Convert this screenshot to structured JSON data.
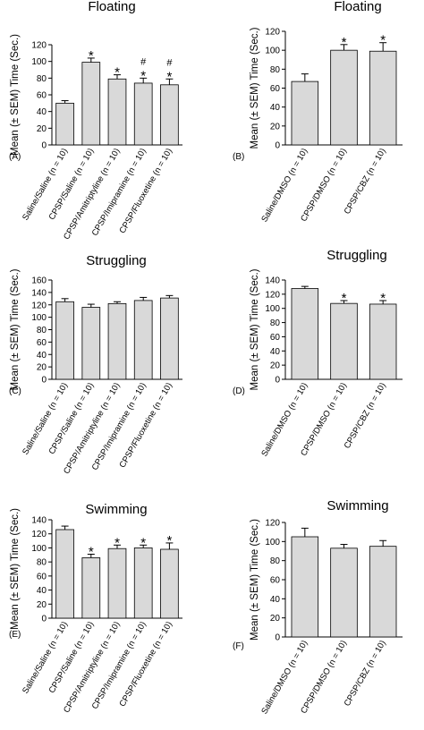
{
  "colors": {
    "bar": "#d9d9d9",
    "stroke": "#000000"
  },
  "chart_data": [
    {
      "type": "bar",
      "panel_label": "(A)",
      "title": "Floating",
      "ylabel": "Mean (± SEM) Time (Sec.)",
      "ylim": [
        0,
        120
      ],
      "yticks": [
        0,
        20,
        40,
        60,
        80,
        100,
        120
      ],
      "categories": [
        "Saline/Saline (n = 10)",
        "CPSP/Saline (n = 10)",
        "CPSP/Amitriptyline (n = 10)",
        "CPSP/Imipramine (n = 10)",
        "CPSP/Fluoxetine (n = 10)"
      ],
      "values": [
        50,
        99,
        79,
        74,
        72
      ],
      "errors": [
        3,
        5,
        5,
        6,
        7
      ],
      "annotations": [
        [],
        [
          "*"
        ],
        [
          "*"
        ],
        [
          "#",
          "*"
        ],
        [
          "#",
          "*"
        ]
      ]
    },
    {
      "type": "bar",
      "panel_label": "(B)",
      "title": "Floating",
      "ylabel": "Mean (± SEM) Time (Sec.)",
      "ylim": [
        0,
        120
      ],
      "yticks": [
        0,
        20,
        40,
        60,
        80,
        100,
        120
      ],
      "categories": [
        "Saline/DMSO (n = 10)",
        "CPSP/DMSO (n = 10)",
        "CPSP/CBZ (n = 10)"
      ],
      "values": [
        67,
        100,
        99
      ],
      "errors": [
        8,
        6,
        9
      ],
      "annotations": [
        [],
        [
          "*"
        ],
        [
          "*"
        ]
      ]
    },
    {
      "type": "bar",
      "panel_label": "(C)",
      "title": "Struggling",
      "ylabel": "Mean (± SEM) Time (Sec.)",
      "ylim": [
        0,
        160
      ],
      "yticks": [
        0,
        20,
        40,
        60,
        80,
        100,
        120,
        140,
        160
      ],
      "categories": [
        "Saline/Saline (n = 10)",
        "CPSP/Saline (n = 10)",
        "CPSP/Amitriptyline (n = 10)",
        "CPSP/Imipramine (n = 10)",
        "CPSP/Fluoxetine (n = 10)"
      ],
      "values": [
        125,
        116,
        122,
        127,
        131
      ],
      "errors": [
        5,
        5,
        3,
        5,
        4
      ],
      "annotations": [
        [],
        [],
        [],
        [],
        []
      ]
    },
    {
      "type": "bar",
      "panel_label": "(D)",
      "title": "Struggling",
      "ylabel": "Mean (± SEM) Time (Sec.)",
      "ylim": [
        0,
        140
      ],
      "yticks": [
        0,
        20,
        40,
        60,
        80,
        100,
        120,
        140
      ],
      "categories": [
        "Saline/DMSO (n = 10)",
        "CPSP/DMSO (n = 10)",
        "CPSP/CBZ (n = 10)"
      ],
      "values": [
        128,
        107,
        106
      ],
      "errors": [
        3,
        4,
        5
      ],
      "annotations": [
        [],
        [
          "*"
        ],
        [
          "*"
        ]
      ]
    },
    {
      "type": "bar",
      "panel_label": "(E)",
      "title": "Swimming",
      "ylabel": "Mean (± SEM) Time (Sec.)",
      "ylim": [
        0,
        140
      ],
      "yticks": [
        0,
        20,
        40,
        60,
        80,
        100,
        120,
        140
      ],
      "categories": [
        "Saline/Saline (n = 10)",
        "CPSP/Saline (n = 10)",
        "CPSP/Amitriptyline (n = 10)",
        "CPSP/Imipramine (n = 10)",
        "CPSP/Fluoxetine (n = 10)"
      ],
      "values": [
        126,
        86,
        99,
        100,
        98
      ],
      "errors": [
        5,
        5,
        5,
        4,
        9
      ],
      "annotations": [
        [],
        [
          "*"
        ],
        [
          "*"
        ],
        [
          "*"
        ],
        [
          "*"
        ]
      ]
    },
    {
      "type": "bar",
      "panel_label": "(F)",
      "title": "Swimming",
      "ylabel": "Mean (± SEM) Time (Sec.)",
      "ylim": [
        0,
        120
      ],
      "yticks": [
        0,
        20,
        40,
        60,
        80,
        100,
        120
      ],
      "categories": [
        "Saline/DMSO (n = 10)",
        "CPSP/DMSO (n = 10)",
        "CPSP/CBZ (n = 10)"
      ],
      "values": [
        105,
        93,
        95
      ],
      "errors": [
        9,
        4,
        6
      ],
      "annotations": [
        [],
        [],
        []
      ]
    }
  ]
}
